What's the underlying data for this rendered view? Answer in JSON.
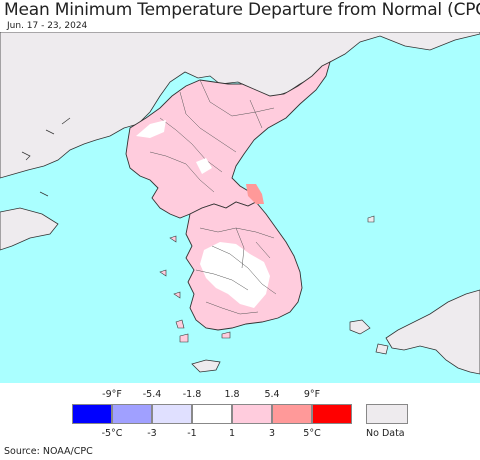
{
  "title": "Mean Minimum Temperature Departure from Normal (CPC)",
  "subtitle": "Jun. 17 - 23, 2024",
  "source": "Source: NOAA/CPC",
  "colors": {
    "ocean": "#aaffff",
    "outside_land": "#eeebee",
    "pink_light": "#ffccdd",
    "pink_mid": "#ff9999",
    "white": "#ffffff",
    "border": "#333333"
  },
  "legend": {
    "fahrenheit_ticks": [
      "-9°F",
      "-5.4",
      "-1.8",
      "1.8",
      "5.4",
      "9°F"
    ],
    "celsius_ticks": [
      "-5°C",
      "-3",
      "-1",
      "1",
      "3",
      "5°C"
    ],
    "bins": [
      {
        "color": "#0000ff"
      },
      {
        "color": "#a0a0ff"
      },
      {
        "color": "#e0e0ff"
      },
      {
        "color": "#ffffff"
      },
      {
        "color": "#ffccdd"
      },
      {
        "color": "#ff9999"
      },
      {
        "color": "#ff0000"
      }
    ],
    "no_data_label": "No Data",
    "no_data_color": "#eeebee"
  }
}
